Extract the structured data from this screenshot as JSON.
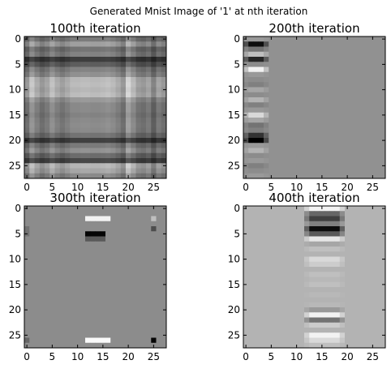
{
  "figure": {
    "suptitle": "Generated Mnist Image of '1' at nth iteration"
  },
  "chart_data": [
    {
      "type": "heatmap",
      "title": "100th iteration",
      "xlabel": "",
      "ylabel": "",
      "colormap": "gray",
      "grid": false,
      "xlim": [
        -0.5,
        27.5
      ],
      "ylim": [
        27.5,
        -0.5
      ],
      "x_ticks": [
        0,
        5,
        10,
        15,
        20,
        25
      ],
      "y_ticks": [
        0,
        5,
        10,
        15,
        20,
        25
      ],
      "image_size": [
        28,
        28
      ],
      "pattern": "separable",
      "base": 0.58,
      "column_profile": [
        0.45,
        0.8,
        0.6,
        0.45,
        0.55,
        0.75,
        0.6,
        0.5,
        0.6,
        0.7,
        0.7,
        0.72,
        0.72,
        0.7,
        0.7,
        0.72,
        0.75,
        0.7,
        0.6,
        0.45,
        0.9,
        0.7,
        0.5,
        0.45,
        0.55,
        0.3,
        0.55,
        0.45
      ],
      "row_profile": [
        0.5,
        0.75,
        0.45,
        0.55,
        0.08,
        0.3,
        0.55,
        0.65,
        0.92,
        0.95,
        0.9,
        0.95,
        0.7,
        0.6,
        0.6,
        0.55,
        0.6,
        0.62,
        0.6,
        0.45,
        0.1,
        0.5,
        0.65,
        0.4,
        0.15,
        0.9,
        0.8,
        0.6
      ]
    },
    {
      "type": "heatmap",
      "title": "200th iteration",
      "xlabel": "",
      "ylabel": "",
      "colormap": "gray",
      "grid": false,
      "xlim": [
        -0.5,
        27.5
      ],
      "ylim": [
        27.5,
        -0.5
      ],
      "x_ticks": [
        0,
        5,
        10,
        15,
        20,
        25
      ],
      "y_ticks": [
        0,
        5,
        10,
        15,
        20,
        25
      ],
      "image_size": [
        28,
        28
      ],
      "pattern": "column_band",
      "base": 0.57,
      "band_start": 0,
      "band_end": 4,
      "band_profile": [
        0.6,
        0.05,
        0.45,
        0.75,
        0.15,
        0.55,
        0.95,
        0.6,
        0.55,
        0.5,
        0.65,
        0.55,
        0.7,
        0.5,
        0.6,
        0.85,
        0.65,
        0.45,
        0.5,
        0.2,
        0.0,
        0.6,
        0.7,
        0.55,
        0.6,
        0.5,
        0.55,
        0.6
      ]
    },
    {
      "type": "heatmap",
      "title": "300th iteration",
      "xlabel": "",
      "ylabel": "",
      "colormap": "gray",
      "grid": false,
      "xlim": [
        -0.5,
        27.5
      ],
      "ylim": [
        27.5,
        -0.5
      ],
      "x_ticks": [
        0,
        5,
        10,
        15,
        20,
        25
      ],
      "y_ticks": [
        0,
        5,
        10,
        15,
        20,
        25
      ],
      "image_size": [
        28,
        28
      ],
      "pattern": "spots",
      "base": 0.55,
      "spots": [
        {
          "x": 12,
          "y": 2,
          "width": 5,
          "height": 1,
          "value": 0.95
        },
        {
          "x": 12,
          "y": 5,
          "width": 4,
          "height": 1,
          "value": 0.02
        },
        {
          "x": 12,
          "y": 6,
          "width": 4,
          "height": 1,
          "value": 0.35
        },
        {
          "x": 12,
          "y": 26,
          "width": 5,
          "height": 1,
          "value": 0.98
        },
        {
          "x": 0,
          "y": 4,
          "width": 1,
          "height": 2,
          "value": 0.45
        },
        {
          "x": 0,
          "y": 26,
          "width": 1,
          "height": 1,
          "value": 0.4
        },
        {
          "x": 25,
          "y": 2,
          "width": 1,
          "height": 1,
          "value": 0.75
        },
        {
          "x": 25,
          "y": 4,
          "width": 1,
          "height": 1,
          "value": 0.3
        },
        {
          "x": 25,
          "y": 26,
          "width": 1,
          "height": 1,
          "value": 0.02
        }
      ]
    },
    {
      "type": "heatmap",
      "title": "400th iteration",
      "xlabel": "",
      "ylabel": "",
      "colormap": "gray",
      "grid": false,
      "xlim": [
        -0.5,
        27.5
      ],
      "ylim": [
        27.5,
        -0.5
      ],
      "x_ticks": [
        0,
        5,
        10,
        15,
        20,
        25
      ],
      "y_ticks": [
        0,
        5,
        10,
        15,
        20,
        25
      ],
      "image_size": [
        28,
        28
      ],
      "pattern": "column_band",
      "base": 0.7,
      "band_start": 12,
      "band_end": 19,
      "band_profile": [
        0.95,
        0.4,
        0.25,
        0.5,
        0.05,
        0.35,
        0.9,
        0.65,
        0.75,
        0.7,
        0.85,
        0.8,
        0.7,
        0.75,
        0.72,
        0.75,
        0.7,
        0.72,
        0.7,
        0.72,
        0.6,
        0.95,
        0.45,
        0.8,
        0.7,
        0.95,
        0.85,
        0.75
      ]
    }
  ]
}
